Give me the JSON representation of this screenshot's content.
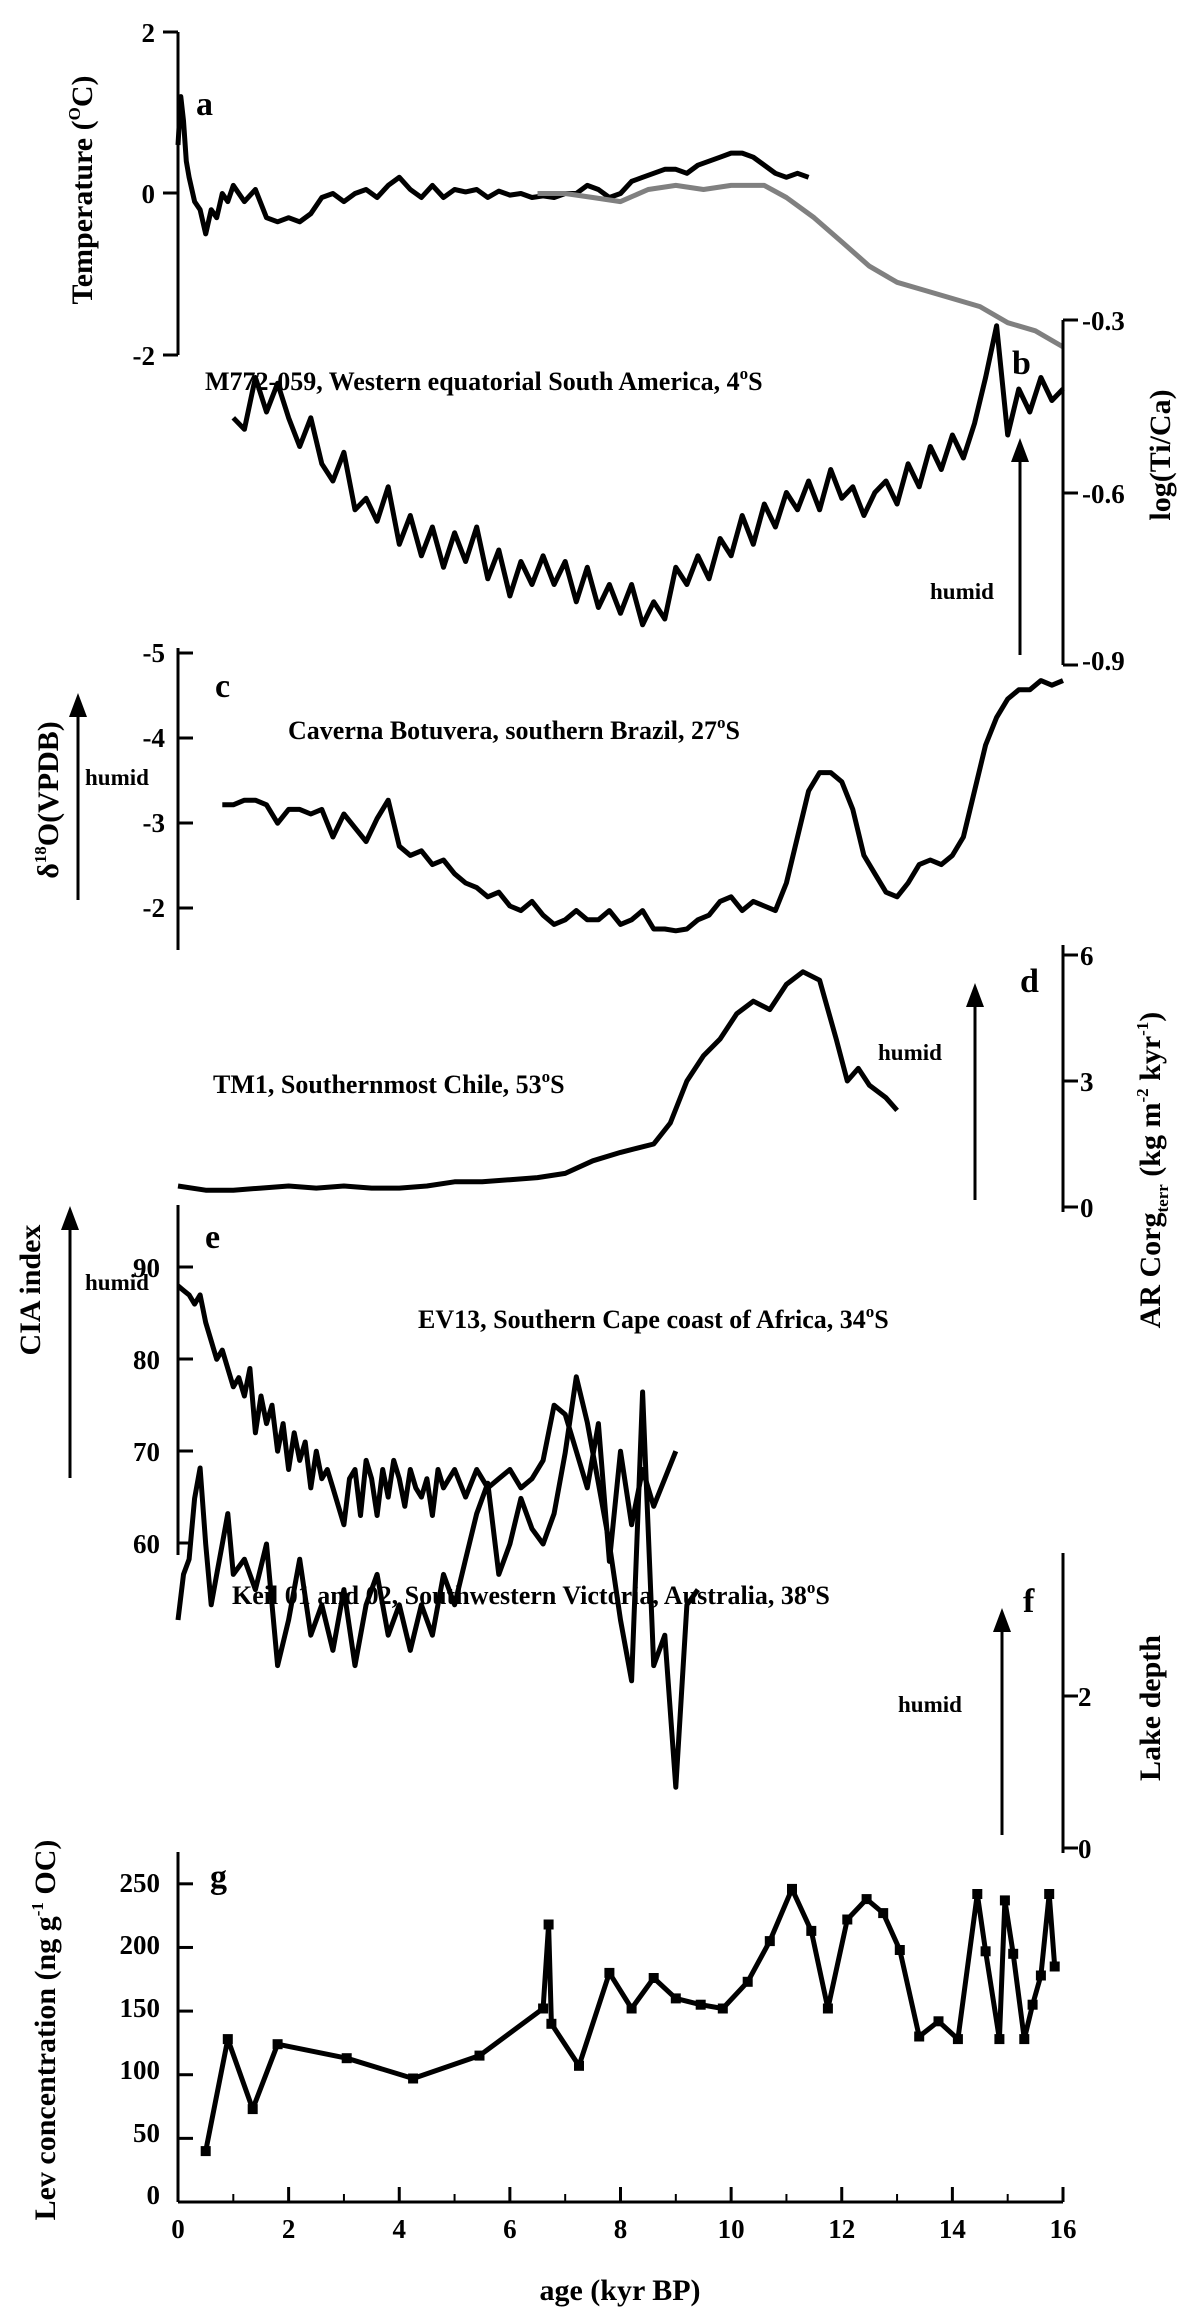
{
  "colors": {
    "series_black": "#000000",
    "series_gray": "#808080",
    "background": "#ffffff"
  },
  "x_axis": {
    "label": "age (kyr BP)",
    "ticks": [
      "0",
      "2",
      "4",
      "6",
      "8",
      "10",
      "12",
      "14",
      "16"
    ]
  },
  "chart_data": [
    {
      "panel": "a",
      "type": "line",
      "ylabel": "Temperature (",
      "ylabel_sup": "O",
      "ylabel_tail": "C)",
      "ylim": [
        -2,
        2
      ],
      "yticks": [
        "2",
        "0",
        "-2"
      ],
      "series": [
        {
          "color": "#000000",
          "x": [
            0,
            0.05,
            0.1,
            0.15,
            0.2,
            0.3,
            0.4,
            0.5,
            0.6,
            0.7,
            0.8,
            0.9,
            1.0,
            1.2,
            1.4,
            1.6,
            1.8,
            2.0,
            2.2,
            2.4,
            2.6,
            2.8,
            3.0,
            3.2,
            3.4,
            3.6,
            3.8,
            4.0,
            4.2,
            4.4,
            4.6,
            4.8,
            5.0,
            5.2,
            5.4,
            5.6,
            5.8,
            6.0,
            6.2,
            6.4,
            6.6,
            6.8,
            7.0,
            7.2,
            7.4,
            7.6,
            7.8,
            8.0,
            8.2,
            8.4,
            8.6,
            8.8,
            9.0,
            9.2,
            9.4,
            9.6,
            9.8,
            10.0,
            10.2,
            10.4,
            10.6,
            10.8,
            11.0,
            11.2,
            11.4
          ],
          "y": [
            0.6,
            1.2,
            0.9,
            0.4,
            0.2,
            -0.1,
            -0.2,
            -0.5,
            -0.2,
            -0.3,
            0,
            -0.1,
            0.1,
            -0.1,
            0.05,
            -0.3,
            -0.35,
            -0.3,
            -0.35,
            -0.25,
            -0.05,
            0,
            -0.1,
            0,
            0.05,
            -0.05,
            0.1,
            0.2,
            0.05,
            -0.05,
            0.1,
            -0.05,
            0.05,
            0.02,
            0.05,
            -0.05,
            0.03,
            -0.02,
            0,
            -0.05,
            -0.03,
            -0.05,
            0,
            0,
            0.1,
            0.05,
            -0.05,
            0,
            0.15,
            0.2,
            0.25,
            0.3,
            0.3,
            0.25,
            0.35,
            0.4,
            0.45,
            0.5,
            0.5,
            0.45,
            0.35,
            0.25,
            0.2,
            0.25,
            0.2
          ]
        },
        {
          "color": "#808080",
          "x": [
            6.5,
            7.0,
            7.5,
            8.0,
            8.5,
            9.0,
            9.5,
            10.0,
            10.3,
            10.6,
            11.0,
            11.5,
            12.0,
            12.5,
            13.0,
            13.5,
            14.0,
            14.5,
            15.0,
            15.5,
            16.0
          ],
          "y": [
            0,
            0,
            -0.05,
            -0.1,
            0.05,
            0.1,
            0.05,
            0.1,
            0.1,
            0.1,
            -0.05,
            -0.3,
            -0.6,
            -0.9,
            -1.1,
            -1.2,
            -1.3,
            -1.4,
            -1.6,
            -1.7,
            -1.9
          ]
        }
      ]
    },
    {
      "panel": "b",
      "type": "line",
      "title": "M772-059, Western equatorial South America, 4",
      "title_sup": "o",
      "title_tail": "S",
      "ylabel": "log(Ti/Ca)",
      "ylim": [
        -0.9,
        -0.3
      ],
      "y_inverted": true,
      "yticks": [
        "-0.3",
        "-0.6",
        "-0.9"
      ],
      "annotation": "humid",
      "series": [
        {
          "color": "#000000",
          "x": [
            1.0,
            1.2,
            1.4,
            1.6,
            1.8,
            2.0,
            2.2,
            2.4,
            2.6,
            2.8,
            3.0,
            3.2,
            3.4,
            3.6,
            3.8,
            4.0,
            4.2,
            4.4,
            4.6,
            4.8,
            5.0,
            5.2,
            5.4,
            5.6,
            5.8,
            6.0,
            6.2,
            6.4,
            6.6,
            6.8,
            7.0,
            7.2,
            7.4,
            7.6,
            7.8,
            8.0,
            8.2,
            8.4,
            8.6,
            8.8,
            9.0,
            9.2,
            9.4,
            9.6,
            9.8,
            10.0,
            10.2,
            10.4,
            10.6,
            10.8,
            11.0,
            11.2,
            11.4,
            11.6,
            11.8,
            12.0,
            12.2,
            12.4,
            12.6,
            12.8,
            13.0,
            13.2,
            13.4,
            13.6,
            13.8,
            14.0,
            14.2,
            14.4,
            14.6,
            14.8,
            15.0,
            15.2,
            15.4,
            15.6,
            15.8,
            16.0
          ],
          "y": [
            -0.47,
            -0.49,
            -0.4,
            -0.46,
            -0.41,
            -0.47,
            -0.52,
            -0.47,
            -0.55,
            -0.58,
            -0.53,
            -0.63,
            -0.61,
            -0.65,
            -0.59,
            -0.69,
            -0.64,
            -0.71,
            -0.66,
            -0.73,
            -0.67,
            -0.72,
            -0.66,
            -0.75,
            -0.7,
            -0.78,
            -0.72,
            -0.76,
            -0.71,
            -0.76,
            -0.72,
            -0.79,
            -0.73,
            -0.8,
            -0.76,
            -0.81,
            -0.76,
            -0.83,
            -0.79,
            -0.82,
            -0.73,
            -0.76,
            -0.71,
            -0.75,
            -0.68,
            -0.71,
            -0.64,
            -0.69,
            -0.62,
            -0.66,
            -0.6,
            -0.63,
            -0.58,
            -0.63,
            -0.56,
            -0.61,
            -0.59,
            -0.64,
            -0.6,
            -0.58,
            -0.62,
            -0.55,
            -0.59,
            -0.52,
            -0.56,
            -0.5,
            -0.54,
            -0.48,
            -0.4,
            -0.31,
            -0.5,
            -0.42,
            -0.46,
            -0.4,
            -0.44,
            -0.42
          ]
        }
      ]
    },
    {
      "panel": "c",
      "type": "line",
      "title": "Caverna Botuvera, southern Brazil, 27",
      "title_sup": "o",
      "title_tail": "S",
      "ylabel_pre": "δ",
      "ylabel_sup": "18",
      "ylabel": "O(VPDB)",
      "ylim": [
        -5,
        -1.75
      ],
      "y_inverted": true,
      "yticks": [
        "-5",
        "-4",
        "-3",
        "-2"
      ],
      "annotation": "humid",
      "series": [
        {
          "color": "#000000",
          "x": [
            0.8,
            1.0,
            1.2,
            1.4,
            1.6,
            1.8,
            2.0,
            2.2,
            2.4,
            2.6,
            2.8,
            3.0,
            3.2,
            3.4,
            3.6,
            3.8,
            4.0,
            4.2,
            4.4,
            4.6,
            4.8,
            5.0,
            5.2,
            5.4,
            5.6,
            5.8,
            6.0,
            6.2,
            6.4,
            6.6,
            6.8,
            7.0,
            7.2,
            7.4,
            7.6,
            7.8,
            8.0,
            8.2,
            8.4,
            8.6,
            8.8,
            9.0,
            9.2,
            9.4,
            9.6,
            9.8,
            10.0,
            10.2,
            10.4,
            10.6,
            10.8,
            11.0,
            11.2,
            11.4,
            11.6,
            11.8,
            12.0,
            12.2,
            12.4,
            12.6,
            12.8,
            13.0,
            13.2,
            13.4,
            13.6,
            13.8,
            14.0,
            14.2,
            14.4,
            14.6,
            14.8,
            15.0,
            15.2,
            15.4,
            15.6,
            15.8,
            16.0
          ],
          "y": [
            -3.35,
            -3.35,
            -3.4,
            -3.4,
            -3.35,
            -3.15,
            -3.3,
            -3.3,
            -3.25,
            -3.3,
            -3.0,
            -3.25,
            -3.1,
            -2.95,
            -3.2,
            -3.4,
            -2.9,
            -2.8,
            -2.85,
            -2.7,
            -2.75,
            -2.6,
            -2.5,
            -2.45,
            -2.35,
            -2.4,
            -2.25,
            -2.2,
            -2.3,
            -2.15,
            -2.05,
            -2.1,
            -2.2,
            -2.1,
            -2.1,
            -2.2,
            -2.05,
            -2.1,
            -2.2,
            -2.0,
            -2.0,
            -1.98,
            -2.0,
            -2.1,
            -2.15,
            -2.3,
            -2.35,
            -2.2,
            -2.3,
            -2.25,
            -2.2,
            -2.5,
            -3.0,
            -3.5,
            -3.7,
            -3.7,
            -3.6,
            -3.3,
            -2.8,
            -2.6,
            -2.4,
            -2.35,
            -2.5,
            -2.7,
            -2.75,
            -2.7,
            -2.8,
            -3.0,
            -3.5,
            -4.0,
            -4.3,
            -4.5,
            -4.6,
            -4.6,
            -4.7,
            -4.65,
            -4.7
          ]
        }
      ]
    },
    {
      "panel": "d",
      "type": "line",
      "title": "TM1, Southernmost Chile, 53",
      "title_sup": "o",
      "title_tail": "S",
      "ylabel": "AR Corg",
      "ylabel_sub": "terr",
      "ylabel_tail": " (kg m",
      "ylabel_sup": "-2",
      "ylabel_tail2": " kyr",
      "ylabel_sup2": "-1",
      "ylabel_end": ")",
      "ylim": [
        0,
        6
      ],
      "yticks": [
        "6",
        "3",
        "0"
      ],
      "annotation": "humid",
      "series": [
        {
          "color": "#000000",
          "x": [
            0,
            0.5,
            1.0,
            1.5,
            2.0,
            2.5,
            3.0,
            3.5,
            4.0,
            4.5,
            5.0,
            5.5,
            6.0,
            6.5,
            7.0,
            7.5,
            8.0,
            8.3,
            8.6,
            8.9,
            9.2,
            9.5,
            9.8,
            10.1,
            10.4,
            10.7,
            11.0,
            11.3,
            11.6,
            11.9,
            12.1,
            12.3,
            12.5,
            12.8,
            13.0
          ],
          "y": [
            0.5,
            0.4,
            0.4,
            0.45,
            0.5,
            0.45,
            0.5,
            0.45,
            0.45,
            0.5,
            0.6,
            0.6,
            0.65,
            0.7,
            0.8,
            1.1,
            1.3,
            1.4,
            1.5,
            2.0,
            3.0,
            3.6,
            4.0,
            4.6,
            4.9,
            4.7,
            5.3,
            5.6,
            5.4,
            4.0,
            3.0,
            3.3,
            2.9,
            2.6,
            2.3
          ]
        }
      ]
    },
    {
      "panel": "e",
      "type": "line",
      "title": "EV13, Southern Cape coast of Africa, 34",
      "title_sup": "o",
      "title_tail": "S",
      "ylabel": "CIA index",
      "ylim": [
        55,
        92
      ],
      "yticks": [
        "90",
        "80",
        "70",
        "60"
      ],
      "annotation": "humid",
      "series": [
        {
          "color": "#000000",
          "x": [
            0,
            0.1,
            0.2,
            0.3,
            0.4,
            0.5,
            0.6,
            0.7,
            0.8,
            0.9,
            1.0,
            1.1,
            1.2,
            1.3,
            1.4,
            1.5,
            1.6,
            1.7,
            1.8,
            1.9,
            2.0,
            2.1,
            2.2,
            2.3,
            2.4,
            2.5,
            2.6,
            2.7,
            2.8,
            2.9,
            3.0,
            3.1,
            3.2,
            3.3,
            3.4,
            3.5,
            3.6,
            3.7,
            3.8,
            3.9,
            4.0,
            4.1,
            4.2,
            4.3,
            4.4,
            4.5,
            4.6,
            4.7,
            4.8,
            4.9,
            5.0,
            5.2,
            5.4,
            5.6,
            5.8,
            6.0,
            6.2,
            6.4,
            6.6,
            6.8,
            7.0,
            7.2,
            7.4,
            7.6,
            7.8,
            8.0,
            8.2,
            8.4,
            8.6,
            8.8,
            9.0
          ],
          "y": [
            88,
            87.5,
            87,
            86,
            87,
            84,
            82,
            80,
            81,
            79,
            77,
            78,
            76,
            79,
            72,
            76,
            73,
            75,
            70,
            73,
            68,
            72,
            69,
            71,
            66,
            70,
            67,
            68,
            66,
            64,
            62,
            67,
            68,
            63,
            69,
            67,
            63,
            68,
            65,
            69,
            67,
            64,
            68,
            66,
            65,
            67,
            63,
            68,
            66,
            67,
            68,
            65,
            68,
            66,
            67,
            68,
            66,
            67,
            69,
            75,
            74,
            70,
            66,
            73,
            58,
            70,
            62,
            68,
            64,
            67,
            70
          ]
        }
      ]
    },
    {
      "panel": "f",
      "type": "line",
      "title": "Keil 01 and 02, Southwestern Victoria, Australia, 38",
      "title_sup": "o",
      "title_tail": "S",
      "ylabel": "Lake depth",
      "ylim": [
        0,
        3.5
      ],
      "yticks": [
        "2",
        "0"
      ],
      "annotation": "humid",
      "series": [
        {
          "color": "#000000",
          "x": [
            0,
            0.1,
            0.2,
            0.3,
            0.4,
            0.5,
            0.6,
            0.7,
            0.8,
            0.9,
            1.0,
            1.2,
            1.4,
            1.6,
            1.8,
            2.0,
            2.2,
            2.4,
            2.6,
            2.8,
            3.0,
            3.2,
            3.4,
            3.6,
            3.8,
            4.0,
            4.2,
            4.4,
            4.6,
            4.8,
            5.0,
            5.2,
            5.4,
            5.6,
            5.8,
            6.0,
            6.2,
            6.4,
            6.6,
            6.8,
            7.0,
            7.2,
            7.4,
            7.6,
            7.8,
            8.0,
            8.2,
            8.4,
            8.6,
            8.8,
            9.0,
            9.2,
            9.4
          ],
          "y": [
            1.5,
            1.8,
            1.9,
            2.3,
            2.5,
            2.0,
            1.6,
            1.8,
            2.0,
            2.2,
            1.8,
            1.9,
            1.7,
            2.0,
            1.2,
            1.5,
            1.9,
            1.4,
            1.6,
            1.3,
            1.7,
            1.2,
            1.6,
            1.8,
            1.4,
            1.6,
            1.3,
            1.6,
            1.4,
            1.8,
            1.6,
            1.9,
            2.2,
            2.4,
            1.8,
            2.0,
            2.3,
            2.1,
            2.0,
            2.2,
            2.6,
            3.1,
            2.8,
            2.4,
            2.0,
            1.5,
            1.1,
            3.0,
            1.2,
            1.4,
            0.4,
            1.6,
            1.7
          ]
        }
      ]
    },
    {
      "panel": "g",
      "type": "line",
      "ylabel": "Lev concentration (ng g",
      "ylabel_sup": "-1",
      "ylabel_tail": " OC)",
      "ylim": [
        0,
        275
      ],
      "yticks": [
        "250",
        "200",
        "150",
        "100",
        "50",
        "0"
      ],
      "series": [
        {
          "color": "#000000",
          "markers": "square",
          "x": [
            0.5,
            0.9,
            1.35,
            1.8,
            3.05,
            4.25,
            5.45,
            6.6,
            6.7,
            6.75,
            7.25,
            7.8,
            8.2,
            8.6,
            9.0,
            9.45,
            9.85,
            10.3,
            10.7,
            11.1,
            11.45,
            11.75,
            12.1,
            12.45,
            12.75,
            13.05,
            13.4,
            13.75,
            14.1,
            14.45,
            14.6,
            14.85,
            14.95,
            15.1,
            15.3,
            15.45,
            15.6,
            15.75,
            15.85
          ],
          "y": [
            40,
            128,
            73,
            124,
            113,
            97,
            115,
            152,
            218,
            140,
            107,
            180,
            152,
            176,
            160,
            155,
            152,
            173,
            205,
            246,
            213,
            152,
            222,
            238,
            227,
            198,
            130,
            142,
            128,
            242,
            197,
            128,
            237,
            195,
            128,
            155,
            178,
            242,
            185
          ]
        }
      ]
    }
  ]
}
